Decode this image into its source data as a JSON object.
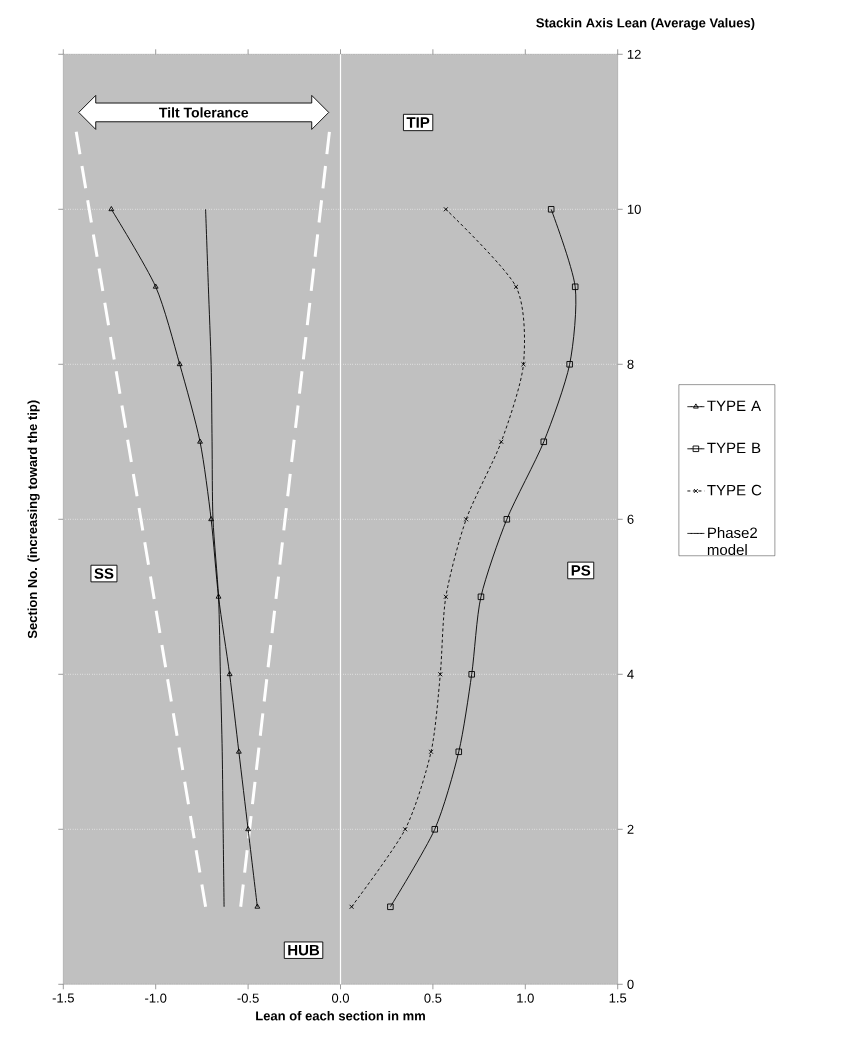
{
  "chart_data": {
    "type": "line",
    "title": "Stackin Axis Lean (Average Values)",
    "xlabel": "Lean of each section in mm",
    "ylabel": "Section No. (increasing toward the tip)",
    "xlim": [
      -1.5,
      1.5
    ],
    "xticks": [
      -1.5,
      {
        "value": -1,
        "label": "-1.0"
      },
      -0.5,
      {
        "value": 0,
        "label": "0.0"
      },
      0.5,
      {
        "value": 1,
        "label": "1.0"
      },
      1.5
    ],
    "ylim": [
      0,
      12
    ],
    "yticks": [
      0,
      2,
      4,
      6,
      8,
      10,
      12
    ],
    "grid": "y",
    "legend": "right",
    "series": [
      {
        "name": "TYPE A",
        "color": "#000000",
        "marker": "triangle",
        "line_style": "solid",
        "x": [
          -0.45,
          -0.5,
          -0.55,
          -0.6,
          -0.66,
          -0.7,
          -0.76,
          -0.87,
          -1.0,
          -1.24
        ],
        "values": [
          1,
          2,
          3,
          4,
          5,
          6,
          7,
          8,
          9,
          10
        ]
      },
      {
        "name": "TYPE B",
        "color": "#000000",
        "marker": "square",
        "line_style": "solid",
        "x": [
          0.27,
          0.51,
          0.64,
          0.71,
          0.76,
          0.9,
          1.1,
          1.24,
          1.27,
          1.14
        ],
        "values": [
          1,
          2,
          3,
          4,
          5,
          6,
          7,
          8,
          9,
          10
        ]
      },
      {
        "name": "TYPE C",
        "color": "#000000",
        "marker": "cross",
        "line_style": "dashed",
        "x": [
          0.06,
          0.35,
          0.49,
          0.54,
          0.57,
          0.68,
          0.87,
          0.99,
          0.95,
          0.57
        ],
        "values": [
          1,
          2,
          3,
          4,
          5,
          6,
          7,
          8,
          9,
          10
        ]
      },
      {
        "name": "Phase2 model",
        "color": "#000000",
        "marker": "none",
        "line_style": "solid",
        "x": [
          -0.63,
          -0.635,
          -0.64,
          -0.65,
          -0.66,
          -0.69,
          -0.695,
          -0.7,
          -0.715,
          -0.73
        ],
        "values": [
          1,
          2,
          3,
          4,
          5,
          6,
          7,
          8,
          9,
          10
        ]
      },
      {
        "color": "#ffffff",
        "marker": "none",
        "line_style": "dashed",
        "x": [
          -0.73,
          -1.43
        ],
        "values": [
          1,
          11
        ]
      },
      {
        "color": "#ffffff",
        "marker": "none",
        "line_style": "dashed",
        "x": [
          -0.54,
          -0.06
        ],
        "values": [
          1,
          11
        ]
      }
    ],
    "ref_lines": [
      {
        "axis": "x",
        "value": 0,
        "color": "#ffffff"
      }
    ],
    "annotations": [
      "Tilt Tolerance",
      "TIP",
      "SS",
      "PS",
      "HUB"
    ]
  }
}
